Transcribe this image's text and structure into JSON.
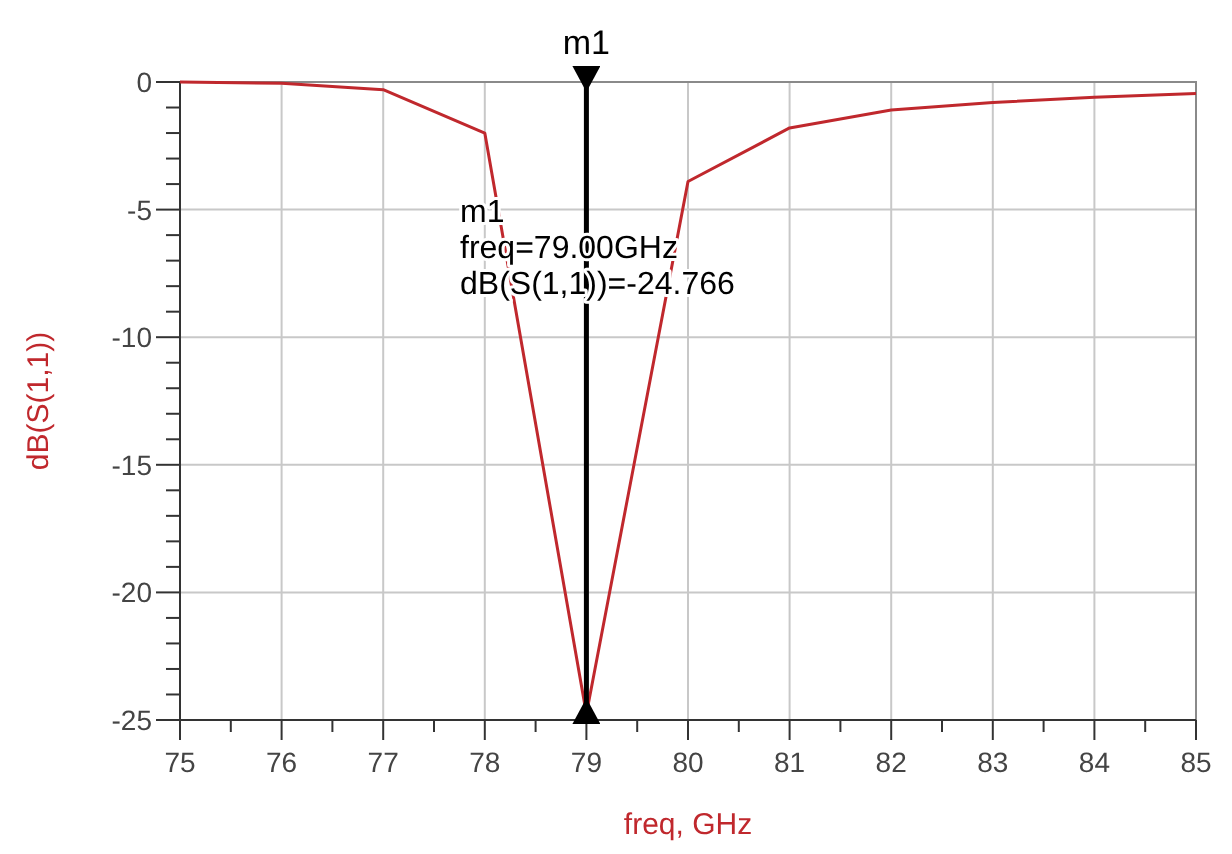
{
  "chart_data": {
    "type": "line",
    "xlabel": "freq, GHz",
    "ylabel": "dB(S(1,1))",
    "x": [
      75,
      76,
      77,
      78,
      79,
      80,
      81,
      82,
      83,
      84,
      85
    ],
    "series": [
      {
        "color": "#c0282d",
        "values": [
          0,
          -0.05,
          -0.3,
          -2,
          -24.766,
          -3.9,
          -1.8,
          -1.1,
          -0.8,
          -0.6,
          -0.45
        ]
      }
    ],
    "xlim": [
      75,
      85
    ],
    "xticks": [
      75,
      {
        "value": 75.5,
        "label": null
      },
      76,
      {
        "value": 76.5,
        "label": null
      },
      77,
      {
        "value": 77.5,
        "label": null
      },
      78,
      {
        "value": 78.5,
        "label": null
      },
      79,
      {
        "value": 79.5,
        "label": null
      },
      80,
      {
        "value": 80.5,
        "label": null
      },
      81,
      {
        "value": 81.5,
        "label": null
      },
      82,
      {
        "value": 82.5,
        "label": null
      },
      83,
      {
        "value": 83.5,
        "label": null
      },
      84,
      {
        "value": 84.5,
        "label": null
      },
      85
    ],
    "ylim": [
      -25,
      0
    ],
    "yticks": [
      -25,
      {
        "value": -24,
        "label": null
      },
      {
        "value": -23,
        "label": null
      },
      {
        "value": -22,
        "label": null
      },
      {
        "value": -21,
        "label": null
      },
      -20,
      {
        "value": -19,
        "label": null
      },
      {
        "value": -18,
        "label": null
      },
      {
        "value": -17,
        "label": null
      },
      {
        "value": -16,
        "label": null
      },
      -15,
      {
        "value": -14,
        "label": null
      },
      {
        "value": -13,
        "label": null
      },
      {
        "value": -12,
        "label": null
      },
      {
        "value": -11,
        "label": null
      },
      -10,
      {
        "value": -9,
        "label": null
      },
      {
        "value": -8,
        "label": null
      },
      {
        "value": -7,
        "label": null
      },
      {
        "value": -6,
        "label": null
      },
      -5,
      {
        "value": -4,
        "label": null
      },
      {
        "value": -3,
        "label": null
      },
      {
        "value": -2,
        "label": null
      },
      {
        "value": -1,
        "label": null
      },
      0
    ],
    "grid": true,
    "marker": "none",
    "line_style": "solid",
    "ref_lines": [
      {
        "axis": "x",
        "value": 79,
        "label": "m1",
        "color": "#000000"
      }
    ],
    "annotations": [
      "m1\nfreq=79.00GHz\ndB(S(1,1))=-24.766"
    ]
  }
}
